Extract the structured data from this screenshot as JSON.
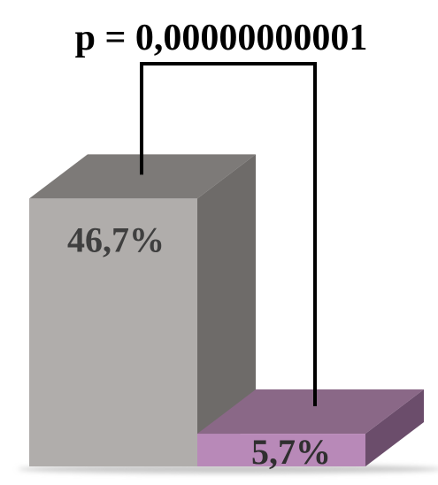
{
  "chart_data": {
    "type": "bar",
    "style": "3d",
    "categories": [
      "",
      ""
    ],
    "values": [
      46.7,
      5.7
    ],
    "data_labels": [
      "46,7%",
      "5,7%"
    ],
    "annotation": "p = 0,00000000001",
    "title": "",
    "xlabel": "",
    "ylabel": "",
    "ylim": [
      0,
      54
    ],
    "grid": false,
    "legend": "none",
    "colors": {
      "bars": [
        {
          "front": "#b0adab",
          "top": "#7d7a78",
          "side": "#6e6b69",
          "label": "#3f3f3f"
        },
        {
          "front": "#b889b8",
          "top": "#8a6887",
          "side": "#6b4d6b",
          "label": "#2f2f2f"
        }
      ],
      "bracket": "#000000",
      "floor_shadow": "#c8c8c8"
    }
  }
}
